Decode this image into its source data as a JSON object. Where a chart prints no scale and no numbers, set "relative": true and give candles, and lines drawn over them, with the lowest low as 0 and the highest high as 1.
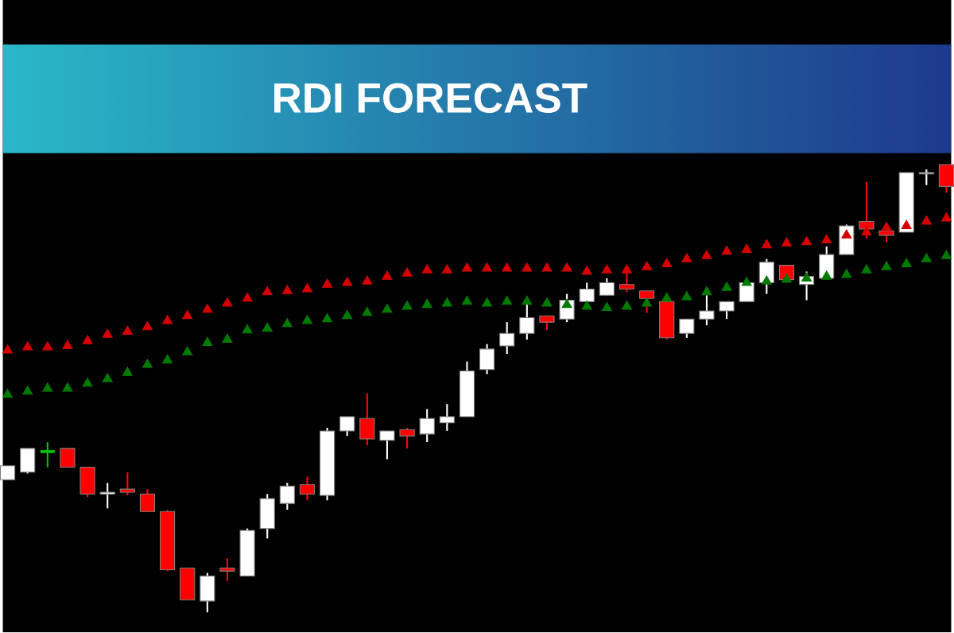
{
  "chart_data": {
    "type": "candlestick",
    "title": "RDI FORECAST",
    "relative": true,
    "categories": [
      null,
      null,
      null,
      null,
      null,
      null,
      null,
      null,
      null,
      null,
      null,
      null,
      null,
      null,
      null,
      null,
      null,
      null,
      null,
      null,
      null,
      null,
      null,
      null,
      null,
      null,
      null,
      null,
      null,
      null,
      null,
      null,
      null,
      null,
      null,
      null,
      null,
      null,
      null,
      null,
      null,
      null,
      null,
      null,
      null,
      null,
      null,
      null
    ],
    "ohlc": [
      [
        0.296,
        0.327,
        0.296,
        0.327
      ],
      [
        0.313,
        0.366,
        0.31,
        0.366
      ],
      [
        0.359,
        0.38,
        0.324,
        0.359
      ],
      [
        0.366,
        0.366,
        0.324,
        0.324
      ],
      [
        0.324,
        0.324,
        0.257,
        0.264
      ],
      [
        0.264,
        0.289,
        0.232,
        0.268
      ],
      [
        0.275,
        0.313,
        0.261,
        0.268
      ],
      [
        0.264,
        0.275,
        0.225,
        0.225
      ],
      [
        0.225,
        0.229,
        0.092,
        0.095
      ],
      [
        0.099,
        0.099,
        0.028,
        0.028
      ],
      [
        0.025,
        0.088,
        0,
        0.081
      ],
      [
        0.099,
        0.12,
        0.07,
        0.092
      ],
      [
        0.081,
        0.187,
        0.081,
        0.183
      ],
      [
        0.187,
        0.264,
        0.165,
        0.254
      ],
      [
        0.243,
        0.289,
        0.229,
        0.282
      ],
      [
        0.285,
        0.303,
        0.25,
        0.264
      ],
      [
        0.261,
        0.412,
        0.25,
        0.405
      ],
      [
        0.405,
        0.437,
        0.394,
        0.437
      ],
      [
        0.433,
        0.489,
        0.373,
        0.387
      ],
      [
        0.384,
        0.405,
        0.342,
        0.405
      ],
      [
        0.408,
        0.412,
        0.366,
        0.394
      ],
      [
        0.398,
        0.454,
        0.38,
        0.433
      ],
      [
        0.423,
        0.465,
        0.405,
        0.437
      ],
      [
        0.437,
        0.56,
        0.437,
        0.539
      ],
      [
        0.542,
        0.599,
        0.532,
        0.588
      ],
      [
        0.595,
        0.648,
        0.577,
        0.623
      ],
      [
        0.623,
        0.694,
        0.609,
        0.658
      ],
      [
        0.662,
        0.662,
        0.63,
        0.648
      ],
      [
        0.655,
        0.711,
        0.648,
        0.697
      ],
      [
        0.694,
        0.736,
        0.694,
        0.722
      ],
      [
        0.708,
        0.746,
        0.708,
        0.736
      ],
      [
        0.732,
        0.761,
        0.715,
        0.722
      ],
      [
        0.718,
        0.718,
        0.669,
        0.701
      ],
      [
        0.694,
        0.694,
        0.609,
        0.613
      ],
      [
        0.623,
        0.655,
        0.613,
        0.655
      ],
      [
        0.655,
        0.708,
        0.641,
        0.673
      ],
      [
        0.673,
        0.694,
        0.655,
        0.694
      ],
      [
        0.694,
        0.736,
        0.694,
        0.736
      ],
      [
        0.736,
        0.789,
        0.711,
        0.782
      ],
      [
        0.775,
        0.775,
        0.743,
        0.743
      ],
      [
        0.732,
        0.761,
        0.697,
        0.75
      ],
      [
        0.746,
        0.817,
        0.746,
        0.799
      ],
      [
        0.799,
        0.866,
        0.799,
        0.863
      ],
      [
        0.873,
        0.961,
        0.835,
        0.856
      ],
      [
        0.852,
        0.87,
        0.827,
        0.842
      ],
      [
        0.849,
        0.982,
        0.849,
        0.982
      ],
      [
        0.979,
        0.989,
        0.954,
        0.982
      ],
      [
        1,
        1,
        0.937,
        0.951
      ]
    ],
    "colors": [
      "#ffffff",
      "#ffffff",
      "#00c000",
      "#ff0000",
      "#ff0000",
      "#ffffff",
      "#ff0000",
      "#ff0000",
      "#ff0000",
      "#ff0000",
      "#ffffff",
      "#ff0000",
      "#ffffff",
      "#ffffff",
      "#ffffff",
      "#ff0000",
      "#ffffff",
      "#ffffff",
      "#ff0000",
      "#ffffff",
      "#ff0000",
      "#ffffff",
      "#ffffff",
      "#ffffff",
      "#ffffff",
      "#ffffff",
      "#ffffff",
      "#ff0000",
      "#ffffff",
      "#ffffff",
      "#ffffff",
      "#ff0000",
      "#ff0000",
      "#ff0000",
      "#ffffff",
      "#ffffff",
      "#ffffff",
      "#ffffff",
      "#ffffff",
      "#ff0000",
      "#ffffff",
      "#ffffff",
      "#ffffff",
      "#ff0000",
      "#ff0000",
      "#ffffff",
      "#ffffff",
      "#ff0000"
    ],
    "series": [
      {
        "type": "scatter",
        "marker": "triangle",
        "color": "#d40000",
        "values": [
          0.585,
          0.592,
          0.592,
          0.595,
          0.606,
          0.62,
          0.627,
          0.637,
          0.651,
          0.662,
          0.676,
          0.69,
          0.701,
          0.715,
          0.718,
          0.722,
          0.732,
          0.736,
          0.739,
          0.75,
          0.757,
          0.764,
          0.764,
          0.768,
          0.768,
          0.768,
          0.768,
          0.768,
          0.768,
          0.761,
          0.764,
          0.764,
          0.771,
          0.778,
          0.789,
          0.796,
          0.806,
          0.81,
          0.82,
          0.824,
          0.827,
          0.831,
          0.842,
          0.849,
          0.859,
          0.863,
          0.873,
          0.88
        ]
      },
      {
        "type": "scatter",
        "marker": "triangle",
        "color": "#007a00",
        "values": [
          0.486,
          0.493,
          0.5,
          0.5,
          0.511,
          0.521,
          0.535,
          0.553,
          0.563,
          0.581,
          0.602,
          0.609,
          0.63,
          0.634,
          0.644,
          0.651,
          0.655,
          0.662,
          0.669,
          0.676,
          0.683,
          0.687,
          0.69,
          0.694,
          0.69,
          0.694,
          0.694,
          0.69,
          0.687,
          0.683,
          0.68,
          0.683,
          0.69,
          0.701,
          0.704,
          0.715,
          0.725,
          0.736,
          0.739,
          0.743,
          0.746,
          0.75,
          0.754,
          0.764,
          0.771,
          0.778,
          0.789,
          0.796
        ]
      }
    ]
  }
}
